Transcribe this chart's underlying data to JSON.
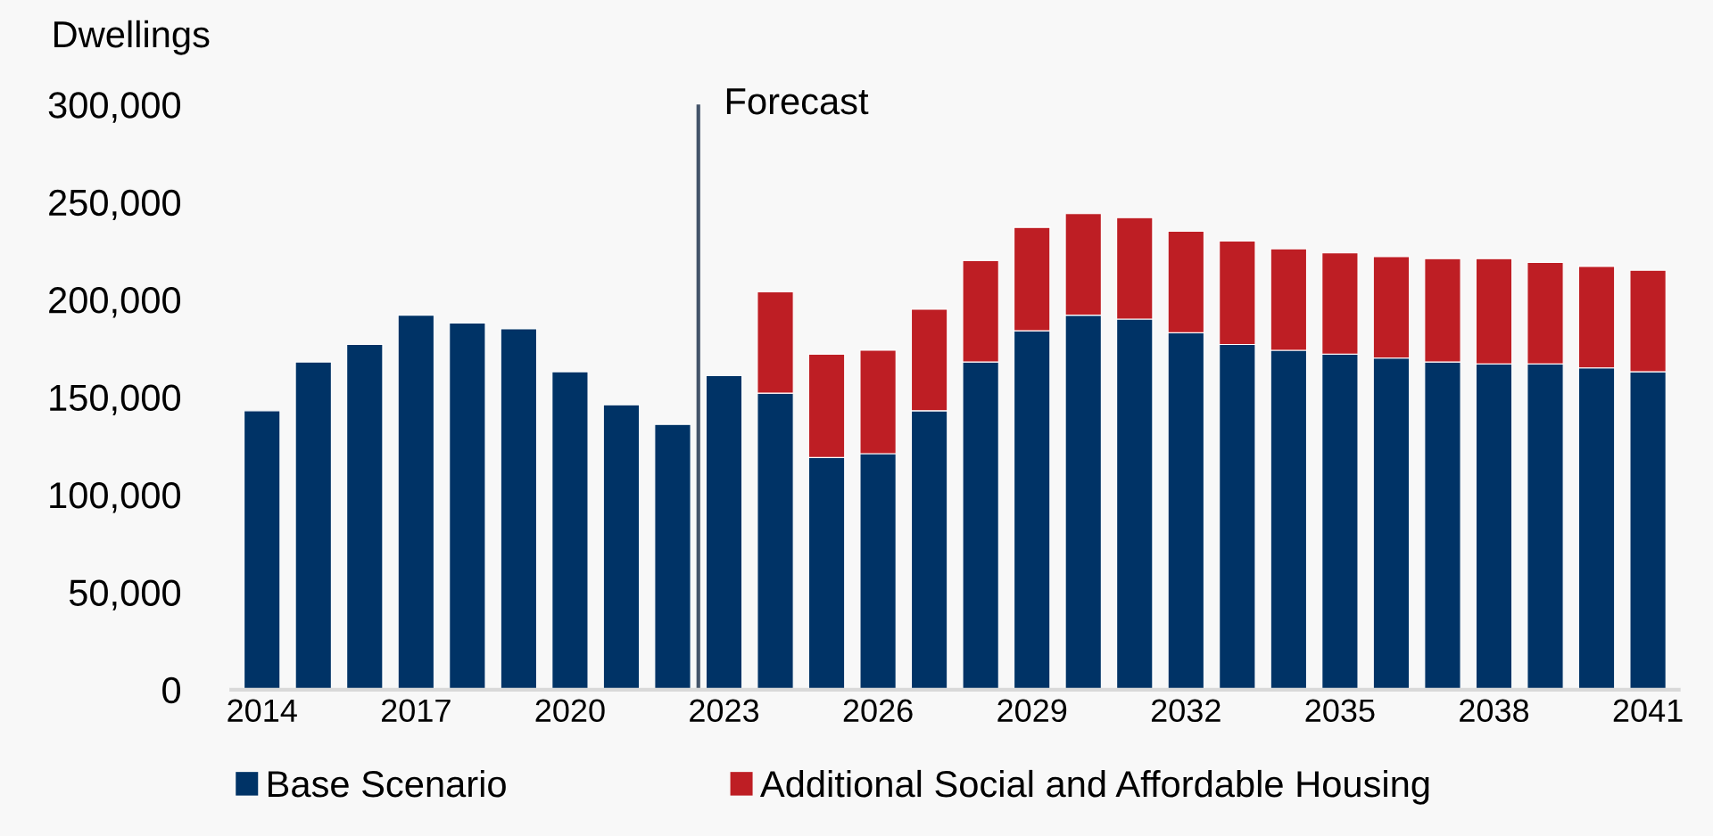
{
  "chart_data": {
    "type": "bar",
    "stacked": true,
    "ylabel": "Dwellings",
    "x": [
      2014,
      2015,
      2016,
      2017,
      2018,
      2019,
      2020,
      2021,
      2022,
      2023,
      2024,
      2025,
      2026,
      2027,
      2028,
      2029,
      2030,
      2031,
      2032,
      2033,
      2034,
      2035,
      2036,
      2037,
      2038,
      2039,
      2040,
      2041
    ],
    "series": [
      {
        "name": "Base Scenario",
        "color": "#003366",
        "values": [
          143000,
          168000,
          177000,
          192000,
          188000,
          185000,
          163000,
          146000,
          136000,
          161000,
          152000,
          119000,
          121000,
          143000,
          168000,
          184000,
          192000,
          190000,
          183000,
          177000,
          174000,
          172000,
          170000,
          168000,
          167000,
          167000,
          165000,
          163000
        ]
      },
      {
        "name": "Additional Social and Affordable Housing",
        "color": "#be1e24",
        "values": [
          null,
          null,
          null,
          null,
          null,
          null,
          null,
          null,
          null,
          null,
          52000,
          53000,
          53000,
          52000,
          52000,
          53000,
          52000,
          52000,
          52000,
          53000,
          52000,
          52000,
          52000,
          53000,
          54000,
          52000,
          52000,
          52000
        ]
      }
    ],
    "xlim": [
      2013.4,
      2041.6
    ],
    "xticks": [
      2014,
      2017,
      2020,
      2023,
      2026,
      2029,
      2032,
      2035,
      2038,
      2041
    ],
    "ylim": [
      0,
      300000
    ],
    "yticks": [
      {
        "value": 0,
        "label": "0"
      },
      {
        "value": 50000,
        "label": "50,000"
      },
      {
        "value": 100000,
        "label": "100,000"
      },
      {
        "value": 150000,
        "label": "150,000"
      },
      {
        "value": 200000,
        "label": "200,000"
      },
      {
        "value": 250000,
        "label": "250,000"
      },
      {
        "value": 300000,
        "label": "300,000"
      }
    ],
    "ref_lines": [
      {
        "axis": "x",
        "value": 2022.5,
        "label": "Forecast",
        "color": "#44546a"
      }
    ],
    "grid": false,
    "legend": "bottom"
  }
}
